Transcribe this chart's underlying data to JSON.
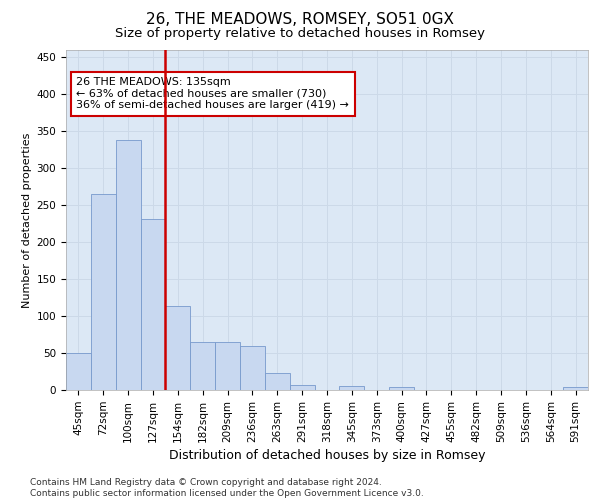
{
  "title": "26, THE MEADOWS, ROMSEY, SO51 0GX",
  "subtitle": "Size of property relative to detached houses in Romsey",
  "xlabel": "Distribution of detached houses by size in Romsey",
  "ylabel": "Number of detached properties",
  "categories": [
    "45sqm",
    "72sqm",
    "100sqm",
    "127sqm",
    "154sqm",
    "182sqm",
    "209sqm",
    "236sqm",
    "263sqm",
    "291sqm",
    "318sqm",
    "345sqm",
    "373sqm",
    "400sqm",
    "427sqm",
    "455sqm",
    "482sqm",
    "509sqm",
    "536sqm",
    "564sqm",
    "591sqm"
  ],
  "values": [
    50,
    265,
    338,
    232,
    113,
    65,
    65,
    60,
    23,
    7,
    0,
    5,
    0,
    4,
    0,
    0,
    0,
    0,
    0,
    0,
    4
  ],
  "bar_color": "#c8d8f0",
  "bar_edge_color": "#7799cc",
  "vline_color": "#cc0000",
  "vline_pos": 3.5,
  "annotation_text": "26 THE MEADOWS: 135sqm\n← 63% of detached houses are smaller (730)\n36% of semi-detached houses are larger (419) →",
  "annotation_box_color": "#ffffff",
  "annotation_box_edge": "#cc0000",
  "grid_color": "#ccd9e8",
  "background_color": "#dce8f5",
  "ylim": [
    0,
    460
  ],
  "yticks": [
    0,
    50,
    100,
    150,
    200,
    250,
    300,
    350,
    400,
    450
  ],
  "footer_line1": "Contains HM Land Registry data © Crown copyright and database right 2024.",
  "footer_line2": "Contains public sector information licensed under the Open Government Licence v3.0.",
  "title_fontsize": 11,
  "subtitle_fontsize": 9.5,
  "xlabel_fontsize": 9,
  "ylabel_fontsize": 8,
  "tick_fontsize": 7.5,
  "annotation_fontsize": 8,
  "footer_fontsize": 6.5
}
